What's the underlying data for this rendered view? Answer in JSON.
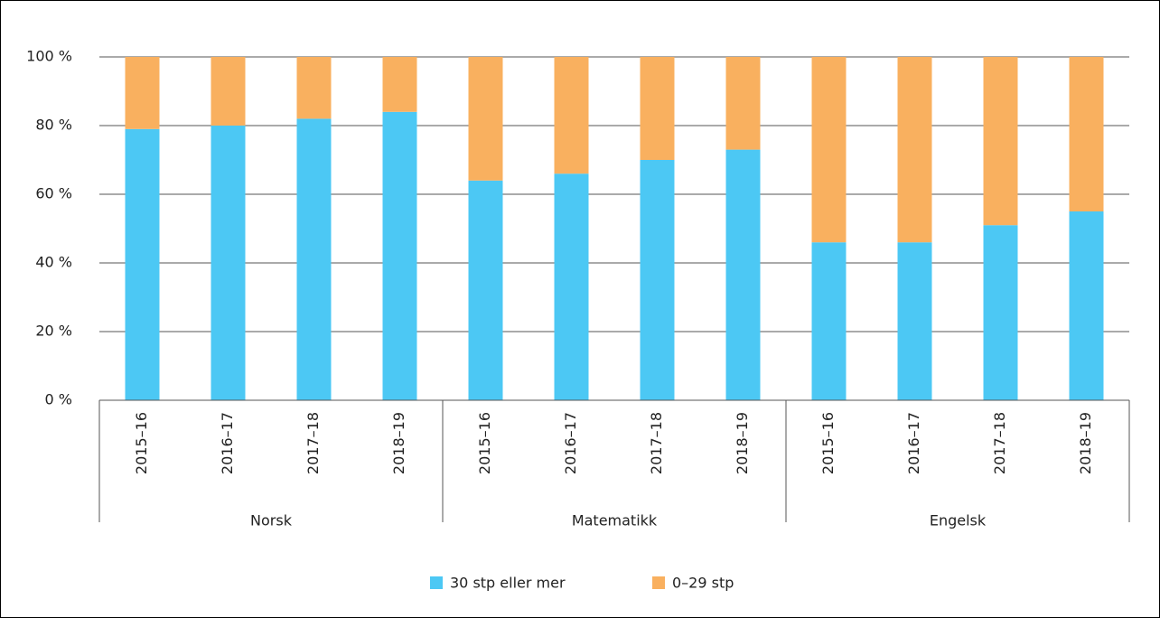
{
  "chart_data": {
    "type": "stacked_bar",
    "categories": [
      "2015–16",
      "2016–17",
      "2017–18",
      "2018–19",
      "2015–16",
      "2016–17",
      "2017–18",
      "2018–19",
      "2015–16",
      "2016–17",
      "2017–18",
      "2018–19"
    ],
    "groups": [
      "Norsk",
      "Matematikk",
      "Engelsk"
    ],
    "series": [
      {
        "name": "30 stp eller mer",
        "color": "#4cc8f4",
        "values": [
          79,
          80,
          82,
          84,
          64,
          66,
          70,
          73,
          46,
          46,
          51,
          55
        ]
      },
      {
        "name": "0–29 stp",
        "color": "#f9b05f",
        "values": [
          21,
          20,
          18,
          16,
          36,
          34,
          30,
          27,
          54,
          54,
          49,
          45
        ]
      }
    ],
    "ylim": [
      0,
      100
    ],
    "yticks": [
      {
        "value": 0,
        "label": "0 %"
      },
      {
        "value": 20,
        "label": "20 %"
      },
      {
        "value": 40,
        "label": "40 %"
      },
      {
        "value": 60,
        "label": "60 %"
      },
      {
        "value": 80,
        "label": "80 %"
      },
      {
        "value": 100,
        "label": "100 %"
      }
    ],
    "grid": true
  }
}
